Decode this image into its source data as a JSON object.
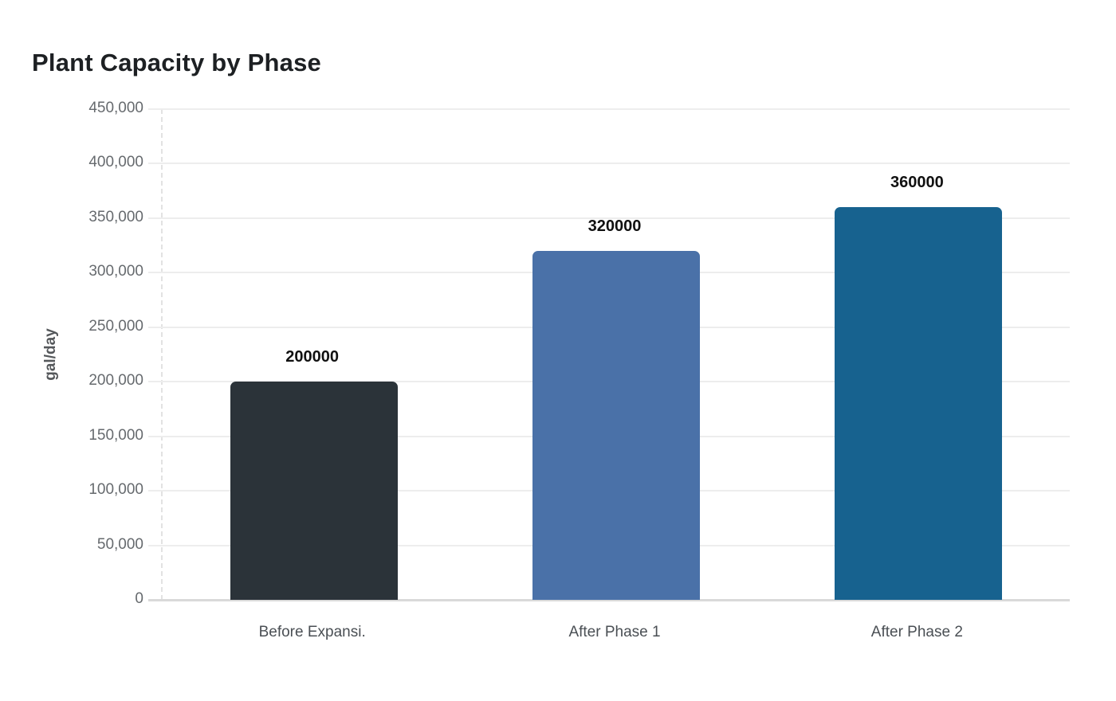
{
  "title": "Plant Capacity by Phase",
  "chart_data": {
    "type": "bar",
    "title": "Plant Capacity by Phase",
    "categories": [
      "Before Expansi.",
      "After Phase 1",
      "After Phase 2"
    ],
    "values": [
      200000,
      320000,
      360000
    ],
    "value_labels": [
      "200000",
      "320000",
      "360000"
    ],
    "bar_colors": [
      "#2b3339",
      "#4a71a8",
      "#17628f"
    ],
    "xlabel": "",
    "ylabel": "gal/day",
    "ylim": [
      0,
      450000
    ],
    "ytick_step": 50000,
    "ytick_labels": [
      "0",
      "50,000",
      "100,000",
      "150,000",
      "200,000",
      "250,000",
      "300,000",
      "350,000",
      "400,000",
      "450,000"
    ],
    "grid": true,
    "legend": false
  },
  "colors": {
    "background": "#ffffff",
    "gridline": "#ededed",
    "baseline": "#d9d9d9",
    "axis_dashed_line": "#e2e2e2",
    "ytick_label": "#666a6e",
    "xtick_label": "#4a4f54",
    "value_label": "#111111",
    "title": "#1d2023",
    "y_axis_title": "#55585b"
  }
}
